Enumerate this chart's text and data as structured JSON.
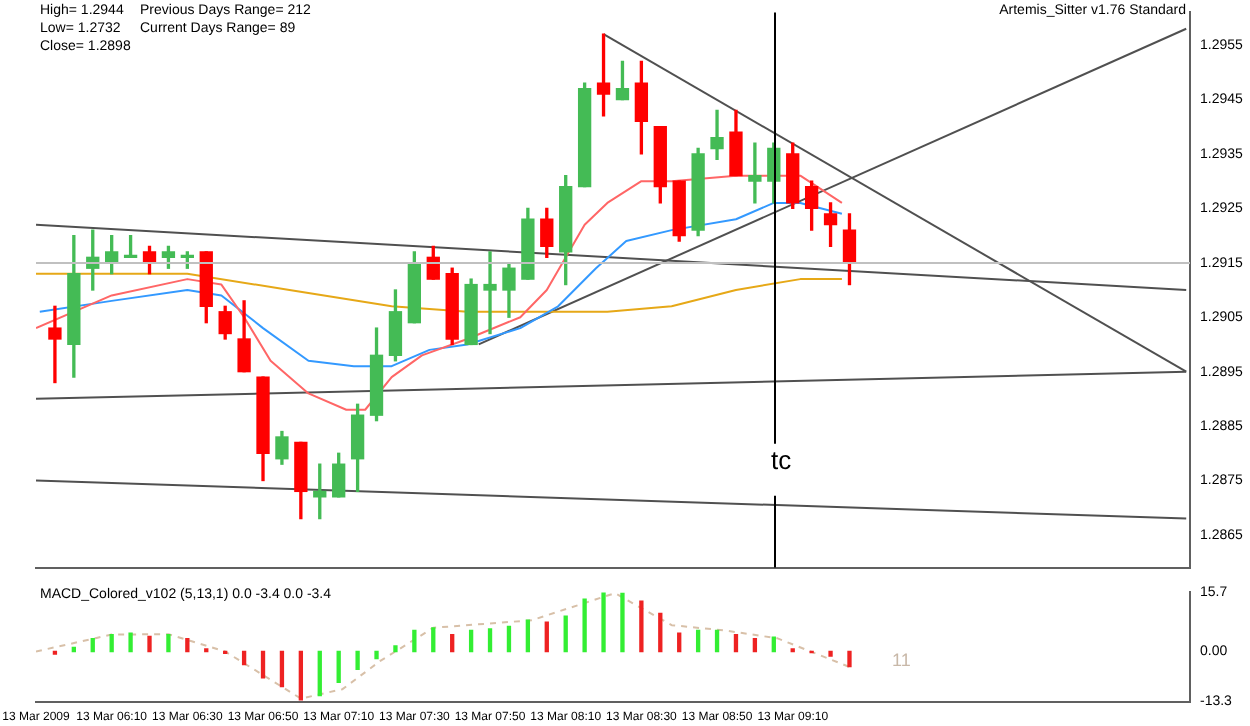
{
  "chart_data": [
    {
      "type": "candlestick",
      "tick_labels": "y",
      "legend": false,
      "grid": false,
      "annotations": [
        "High= 1.2944",
        "Previous Days Range= 212",
        "Low= 1.2732",
        "Current Days Range= 89",
        "Close= 1.2898",
        "Artemis_Sitter v1.76 Standard"
      ],
      "x": [
        "2009-03-13T05:55",
        "2009-03-13T06:00",
        "2009-03-13T06:05",
        "2009-03-13T06:10",
        "2009-03-13T06:15",
        "2009-03-13T06:20",
        "2009-03-13T06:25",
        "2009-03-13T06:30",
        "2009-03-13T06:35",
        "2009-03-13T06:40",
        "2009-03-13T06:45",
        "2009-03-13T06:50",
        "2009-03-13T06:55",
        "2009-03-13T07:00",
        "2009-03-13T07:05",
        "2009-03-13T07:10",
        "2009-03-13T07:15",
        "2009-03-13T07:20",
        "2009-03-13T07:25",
        "2009-03-13T07:30",
        "2009-03-13T07:35",
        "2009-03-13T07:40",
        "2009-03-13T07:45",
        "2009-03-13T07:50",
        "2009-03-13T07:55",
        "2009-03-13T08:00",
        "2009-03-13T08:05",
        "2009-03-13T08:10",
        "2009-03-13T08:15",
        "2009-03-13T08:20",
        "2009-03-13T08:25",
        "2009-03-13T08:30",
        "2009-03-13T08:35",
        "2009-03-13T08:40",
        "2009-03-13T08:45",
        "2009-03-13T08:50",
        "2009-03-13T08:55",
        "2009-03-13T09:00",
        "2009-03-13T09:05",
        "2009-03-13T09:10",
        "2009-03-13T09:15",
        "2009-03-13T09:20",
        "2009-03-13T09:25"
      ],
      "ohlc": [
        [
          1.2903,
          1.2907,
          1.2893,
          1.2901
        ],
        [
          1.29,
          1.292,
          1.2894,
          1.2913
        ],
        [
          1.2914,
          1.2921,
          1.291,
          1.2916
        ],
        [
          1.2915,
          1.292,
          1.2913,
          1.2917
        ],
        [
          1.2916,
          1.292,
          1.2916,
          1.2916
        ],
        [
          1.2917,
          1.2918,
          1.2913,
          1.2915
        ],
        [
          1.2916,
          1.2918,
          1.2914,
          1.2917
        ],
        [
          1.2916,
          1.2917,
          1.2914,
          1.2916
        ],
        [
          1.2917,
          1.2917,
          1.2904,
          1.2907
        ],
        [
          1.2906,
          1.2907,
          1.2901,
          1.2902
        ],
        [
          1.2901,
          1.2908,
          1.2895,
          1.2895
        ],
        [
          1.2894,
          1.2894,
          1.2875,
          1.288
        ],
        [
          1.2879,
          1.2884,
          1.2878,
          1.2883
        ],
        [
          1.2882,
          1.2882,
          1.2868,
          1.2873
        ],
        [
          1.2872,
          1.2878,
          1.2868,
          1.2873
        ],
        [
          1.2872,
          1.288,
          1.2872,
          1.2878
        ],
        [
          1.2879,
          1.2889,
          1.2873,
          1.2887
        ],
        [
          1.2887,
          1.2903,
          1.2886,
          1.2898
        ],
        [
          1.2898,
          1.291,
          1.2897,
          1.2906
        ],
        [
          1.2904,
          1.2917,
          1.2904,
          1.2915
        ],
        [
          1.2916,
          1.2918,
          1.2912,
          1.2912
        ],
        [
          1.2913,
          1.2914,
          1.29,
          1.2901
        ],
        [
          1.29,
          1.2912,
          1.29,
          1.2911
        ],
        [
          1.291,
          1.2917,
          1.2902,
          1.2911
        ],
        [
          1.291,
          1.2915,
          1.2905,
          1.2914
        ],
        [
          1.2912,
          1.2925,
          1.2912,
          1.2923
        ],
        [
          1.2923,
          1.2925,
          1.2916,
          1.2918
        ],
        [
          1.2917,
          1.2931,
          1.2911,
          1.2929
        ],
        [
          1.2929,
          1.2948,
          1.2929,
          1.2947
        ],
        [
          1.2948,
          1.2957,
          1.2942,
          1.2946
        ],
        [
          1.2945,
          1.2952,
          1.2945,
          1.2947
        ],
        [
          1.2948,
          1.2952,
          1.2935,
          1.2941
        ],
        [
          1.294,
          1.294,
          1.2926,
          1.2929
        ],
        [
          1.293,
          1.293,
          1.2919,
          1.292
        ],
        [
          1.2921,
          1.2936,
          1.292,
          1.2935
        ],
        [
          1.2936,
          1.2943,
          1.2934,
          1.2938
        ],
        [
          1.2939,
          1.2943,
          1.2931,
          1.2931
        ],
        [
          1.293,
          1.2937,
          1.2926,
          1.2931
        ],
        [
          1.293,
          1.2937,
          1.2926,
          1.2936
        ],
        [
          1.2935,
          1.2937,
          1.2925,
          1.2926
        ],
        [
          1.2929,
          1.293,
          1.2921,
          1.2925
        ],
        [
          1.2924,
          1.2926,
          1.2918,
          1.2922
        ],
        [
          1.2921,
          1.2924,
          1.2911,
          1.2915
        ]
      ],
      "colors": [
        "#ff0000",
        "#44bb55",
        "#44bb55",
        "#44bb55",
        "#44bb55",
        "#ff0000",
        "#44bb55",
        "#44bb55",
        "#ff0000",
        "#ff0000",
        "#ff0000",
        "#ff0000",
        "#44bb55",
        "#ff0000",
        "#44bb55",
        "#44bb55",
        "#44bb55",
        "#44bb55",
        "#44bb55",
        "#44bb55",
        "#ff0000",
        "#ff0000",
        "#44bb55",
        "#44bb55",
        "#44bb55",
        "#44bb55",
        "#ff0000",
        "#44bb55",
        "#44bb55",
        "#ff0000",
        "#44bb55",
        "#ff0000",
        "#ff0000",
        "#ff0000",
        "#44bb55",
        "#44bb55",
        "#ff0000",
        "#44bb55",
        "#44bb55",
        "#ff0000",
        "#ff0000",
        "#ff0000",
        "#ff0000"
      ],
      "series": [
        {
          "type": "line",
          "color": "#ff6666",
          "x": [
            "2009-03-13T05:50",
            "2009-03-13T06:10",
            "2009-03-13T06:30",
            "2009-03-13T06:39",
            "2009-03-13T06:45",
            "2009-03-13T06:52",
            "2009-03-13T07:02",
            "2009-03-13T07:12",
            "2009-03-13T07:17",
            "2009-03-13T07:24",
            "2009-03-13T07:32",
            "2009-03-13T07:44",
            "2009-03-13T07:58",
            "2009-03-13T08:05",
            "2009-03-13T08:15",
            "2009-03-13T08:21",
            "2009-03-13T08:30",
            "2009-03-13T08:38",
            "2009-03-13T08:55",
            "2009-03-13T09:12",
            "2009-03-13T09:23"
          ],
          "values": [
            1.2903,
            1.2909,
            1.2912,
            1.2911,
            1.2905,
            1.2897,
            1.2891,
            1.2888,
            1.2888,
            1.2894,
            1.2898,
            1.2901,
            1.2905,
            1.291,
            1.2922,
            1.2926,
            1.293,
            1.293,
            1.2931,
            1.2931,
            1.2926
          ]
        },
        {
          "type": "line",
          "color": "#3399ff",
          "x": [
            "2009-03-13T05:51",
            "2009-03-13T06:10",
            "2009-03-13T06:30",
            "2009-03-13T06:39",
            "2009-03-13T06:50",
            "2009-03-13T07:02",
            "2009-03-13T07:14",
            "2009-03-13T07:24",
            "2009-03-13T07:34",
            "2009-03-13T07:44",
            "2009-03-13T07:58",
            "2009-03-13T08:08",
            "2009-03-13T08:18",
            "2009-03-13T08:26",
            "2009-03-13T08:38",
            "2009-03-13T08:55",
            "2009-03-13T09:05",
            "2009-03-13T09:12",
            "2009-03-13T09:23"
          ],
          "values": [
            1.2906,
            1.2908,
            1.291,
            1.2909,
            1.2903,
            1.2897,
            1.2896,
            1.2896,
            1.2899,
            1.29,
            1.2903,
            1.2907,
            1.2914,
            1.2919,
            1.2921,
            1.2923,
            1.2926,
            1.2926,
            1.2924
          ]
        },
        {
          "type": "line",
          "color": "#e6a817",
          "x": [
            "2009-03-13T05:50",
            "2009-03-13T06:30",
            "2009-03-13T06:57",
            "2009-03-13T07:24",
            "2009-03-13T07:44",
            "2009-03-13T08:08",
            "2009-03-13T08:21",
            "2009-03-13T08:38",
            "2009-03-13T08:55",
            "2009-03-13T09:12",
            "2009-03-13T09:23"
          ],
          "values": [
            1.2913,
            1.2913,
            1.291,
            1.2907,
            1.2906,
            1.2906,
            1.2906,
            1.2907,
            1.291,
            1.2912,
            1.2912
          ]
        },
        {
          "type": "line",
          "color": "#505050",
          "x": [
            "2009-03-13T08:20",
            "2009-03-13T10:54"
          ],
          "values": [
            1.2957,
            1.2895
          ]
        },
        {
          "type": "line",
          "color": "#505050",
          "x": [
            "2009-03-13T07:47",
            "2009-03-13T10:54"
          ],
          "values": [
            1.29,
            1.2958
          ]
        },
        {
          "type": "line",
          "color": "#505050",
          "x": [
            "2009-03-13T05:50",
            "2009-03-13T10:54"
          ],
          "values": [
            1.2922,
            1.291
          ]
        },
        {
          "type": "line",
          "color": "#505050",
          "x": [
            "2009-03-13T05:50",
            "2009-03-13T10:54"
          ],
          "values": [
            1.289,
            1.2895
          ]
        },
        {
          "type": "line",
          "color": "#505050",
          "x": [
            "2009-03-13T05:50",
            "2009-03-13T10:54"
          ],
          "values": [
            1.2875,
            1.2868
          ]
        }
      ],
      "ref_lines": [
        {
          "axis": "y",
          "value": 1.2915,
          "color": "#c0c0c0"
        },
        {
          "axis": "x",
          "value": "2009-03-13T09:05",
          "label": "tc",
          "color": "#000000"
        }
      ],
      "xlim": [
        "2009-03-13T05:50",
        "2009-03-13T10:55"
      ],
      "ylim": [
        1.2859,
        1.2961
      ],
      "yticks": [
        1.2955,
        1.2945,
        1.2935,
        1.2925,
        1.2915,
        1.2905,
        1.2895,
        1.2885,
        1.2875,
        1.2865
      ]
    },
    {
      "type": "bar",
      "legend": false,
      "grid": false,
      "annotations": [
        "MACD_Colored_v102 (5,13,1) 0.0 -3.4 0.0 -3.4",
        "11"
      ],
      "series": [
        {
          "x": [
            "2009-03-13T05:55",
            "2009-03-13T06:00",
            "2009-03-13T06:05",
            "2009-03-13T06:10",
            "2009-03-13T06:15",
            "2009-03-13T06:20",
            "2009-03-13T06:25",
            "2009-03-13T06:30",
            "2009-03-13T06:35",
            "2009-03-13T06:40",
            "2009-03-13T06:45",
            "2009-03-13T06:50",
            "2009-03-13T06:55",
            "2009-03-13T07:00",
            "2009-03-13T07:05",
            "2009-03-13T07:10",
            "2009-03-13T07:15",
            "2009-03-13T07:20",
            "2009-03-13T07:25",
            "2009-03-13T07:30",
            "2009-03-13T07:35",
            "2009-03-13T07:40",
            "2009-03-13T07:45",
            "2009-03-13T07:50",
            "2009-03-13T07:55",
            "2009-03-13T08:00",
            "2009-03-13T08:05",
            "2009-03-13T08:10",
            "2009-03-13T08:15",
            "2009-03-13T08:20",
            "2009-03-13T08:25",
            "2009-03-13T08:30",
            "2009-03-13T08:35",
            "2009-03-13T08:40",
            "2009-03-13T08:45",
            "2009-03-13T08:50",
            "2009-03-13T08:55",
            "2009-03-13T09:00",
            "2009-03-13T09:05",
            "2009-03-13T09:10",
            "2009-03-13T09:15",
            "2009-03-13T09:20",
            "2009-03-13T09:25"
          ],
          "values": [
            -0.7,
            1.1,
            3.4,
            4.5,
            4.9,
            4.0,
            4.5,
            3.4,
            0.7,
            -0.5,
            -3.5,
            -7.0,
            -9.3,
            -12.8,
            -11.7,
            -8.2,
            -4.7,
            -1.9,
            1.5,
            5.6,
            6.3,
            4.5,
            5.6,
            6.0,
            6.7,
            8.3,
            7.8,
            9.4,
            13.9,
            15.7,
            15.5,
            13.4,
            10.1,
            4.9,
            5.6,
            5.6,
            4.5,
            3.4,
            3.8,
            0.7,
            -0.3,
            -1.2,
            -4.0
          ],
          "colors": [
            "#ee2222",
            "#33ee33",
            "#33ee33",
            "#33ee33",
            "#33ee33",
            "#ee2222",
            "#33ee33",
            "#ee2222",
            "#ee2222",
            "#ee2222",
            "#ee2222",
            "#ee2222",
            "#ee2222",
            "#ee2222",
            "#33ee33",
            "#33ee33",
            "#33ee33",
            "#33ee33",
            "#33ee33",
            "#33ee33",
            "#33ee33",
            "#ee2222",
            "#33ee33",
            "#33ee33",
            "#33ee33",
            "#33ee33",
            "#ee2222",
            "#33ee33",
            "#33ee33",
            "#33ee33",
            "#33ee33",
            "#ee2222",
            "#ee2222",
            "#ee2222",
            "#33ee33",
            "#33ee33",
            "#ee2222",
            "#ee2222",
            "#33ee33",
            "#ee2222",
            "#ee2222",
            "#ee2222",
            "#ee2222"
          ]
        },
        {
          "type": "line",
          "color": "#d8c0a8",
          "line_style": "dashed",
          "x": [
            "2009-03-13T05:50",
            "2009-03-13T06:10",
            "2009-03-13T06:25",
            "2009-03-13T06:40",
            "2009-03-13T07:00",
            "2009-03-13T07:11",
            "2009-03-13T07:21",
            "2009-03-13T07:35",
            "2009-03-13T08:01",
            "2009-03-13T08:23",
            "2009-03-13T08:38",
            "2009-03-13T08:52",
            "2009-03-13T09:06",
            "2009-03-13T09:26"
          ],
          "values": [
            0,
            4.5,
            4.6,
            0,
            -12.5,
            -10,
            -2.5,
            6.3,
            8.3,
            15.5,
            7,
            5.6,
            3.5,
            -4.5
          ]
        }
      ],
      "xlim": [
        "2009-03-13T05:50",
        "2009-03-13T10:55"
      ],
      "ylim": [
        -13.3,
        15.7
      ],
      "xticks": [
        {
          "value": "2009-03-13T05:50",
          "label": "13 Mar 2009"
        },
        {
          "value": "2009-03-13T06:10",
          "label": "13 Mar 06:10"
        },
        {
          "value": "2009-03-13T06:30",
          "label": "13 Mar 06:30"
        },
        {
          "value": "2009-03-13T06:50",
          "label": "13 Mar 06:50"
        },
        {
          "value": "2009-03-13T07:10",
          "label": "13 Mar 07:10"
        },
        {
          "value": "2009-03-13T07:30",
          "label": "13 Mar 07:30"
        },
        {
          "value": "2009-03-13T07:50",
          "label": "13 Mar 07:50"
        },
        {
          "value": "2009-03-13T08:10",
          "label": "13 Mar 08:10"
        },
        {
          "value": "2009-03-13T08:30",
          "label": "13 Mar 08:30"
        },
        {
          "value": "2009-03-13T08:50",
          "label": "13 Mar 08:50"
        },
        {
          "value": "2009-03-13T09:10",
          "label": "13 Mar 09:10"
        }
      ],
      "yticks": [
        15.7,
        {
          "value": 0,
          "label": "0.00"
        },
        -13.3
      ]
    }
  ]
}
